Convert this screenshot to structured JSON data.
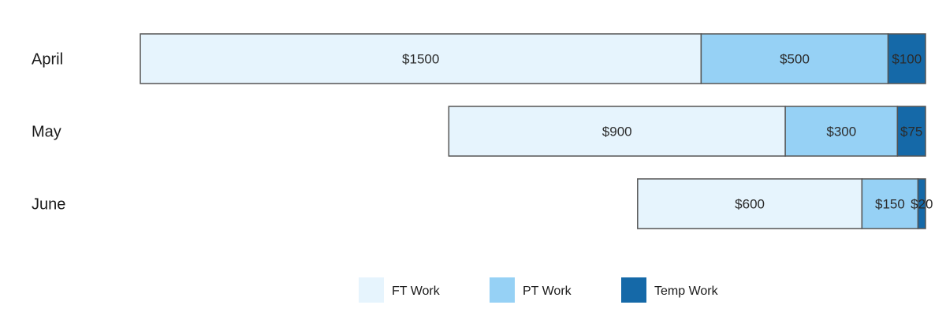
{
  "chart_data": {
    "type": "bar",
    "orientation": "horizontal",
    "stacked": true,
    "alignment": "right-to-left-funnel",
    "title": "",
    "xlabel": "",
    "ylabel": "",
    "grid": false,
    "legend_position": "bottom",
    "categories": [
      "April",
      "May",
      "June"
    ],
    "series": [
      {
        "name": "FT Work",
        "color": "#e6f4fd",
        "values": [
          1500,
          900,
          600
        ],
        "labels": [
          "$1500",
          "$900",
          "$600"
        ]
      },
      {
        "name": "PT Work",
        "color": "#96d1f5",
        "values": [
          500,
          300,
          150
        ],
        "labels": [
          "$500",
          "$300",
          "$150"
        ]
      },
      {
        "name": "Temp Work",
        "color": "#1569a8",
        "values": [
          100,
          75,
          20
        ],
        "labels": [
          "$100",
          "$75",
          "$20"
        ]
      }
    ]
  }
}
